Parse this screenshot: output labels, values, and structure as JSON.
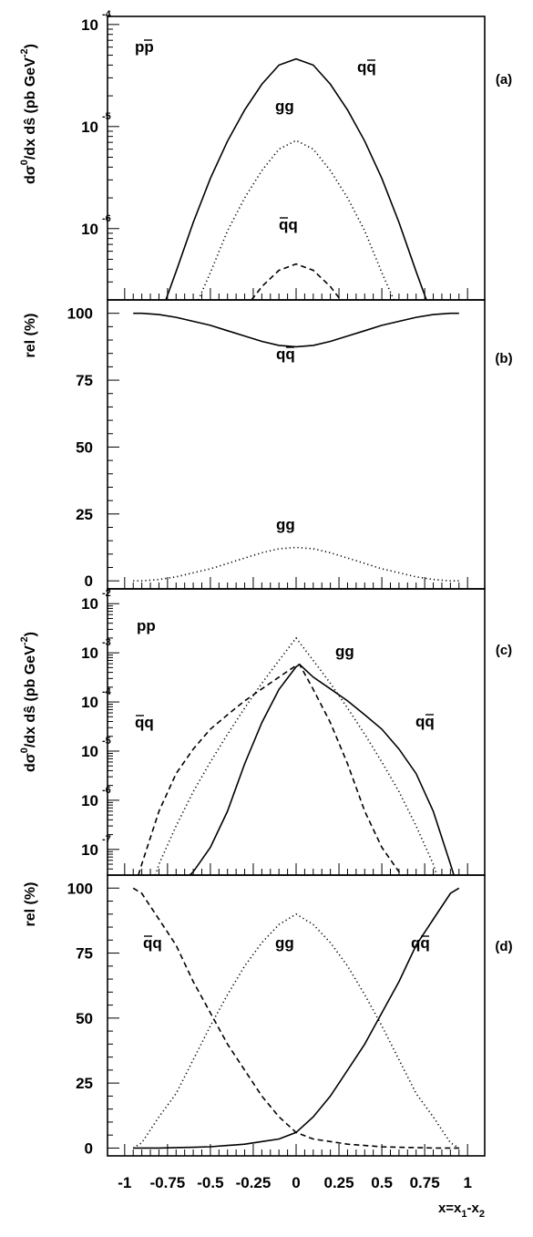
{
  "chart_data": [
    {
      "panel": "(a)",
      "type": "line",
      "scale_y": "log",
      "ylabel": "dσ⁰/dx dŝ (pb GeV⁻²)",
      "xlim": [
        -1.1,
        1.1
      ],
      "ylim": [
        2e-07,
        0.00012
      ],
      "ytick_labels": [
        "10⁻⁴",
        "10⁻⁵",
        "10⁻⁶"
      ],
      "ytick_values": [
        0.0001,
        1e-05,
        1e-06
      ],
      "annotations": [
        "pp̄",
        "qq̄",
        "gg",
        "q̄q"
      ],
      "series": [
        {
          "name": "qq̄",
          "style": "solid",
          "x": [
            -0.76,
            -0.7,
            -0.6,
            -0.5,
            -0.4,
            -0.3,
            -0.2,
            -0.1,
            0,
            0.1,
            0.2,
            0.3,
            0.4,
            0.5,
            0.6,
            0.7,
            0.76
          ],
          "y": [
            2e-07,
            3.8e-07,
            1.15e-06,
            3.1e-06,
            7.2e-06,
            1.45e-05,
            2.6e-05,
            4e-05,
            4.6e-05,
            4e-05,
            2.6e-05,
            1.45e-05,
            7.2e-06,
            3.1e-06,
            1.15e-06,
            3.8e-07,
            2e-07
          ]
        },
        {
          "name": "gg",
          "style": "dotted",
          "x": [
            -0.57,
            -0.5,
            -0.4,
            -0.3,
            -0.2,
            -0.1,
            0,
            0.1,
            0.2,
            0.3,
            0.4,
            0.5,
            0.57
          ],
          "y": [
            2e-07,
            3.7e-07,
            9.5e-07,
            2e-06,
            3.7e-06,
            6e-06,
            7.3e-06,
            6e-06,
            3.7e-06,
            2e-06,
            9.5e-07,
            3.7e-07,
            2e-07
          ]
        },
        {
          "name": "q̄q",
          "style": "dashed",
          "x": [
            -0.26,
            -0.2,
            -0.1,
            0,
            0.1,
            0.2,
            0.26
          ],
          "y": [
            2e-07,
            2.7e-07,
            3.9e-07,
            4.5e-07,
            3.9e-07,
            2.7e-07,
            2e-07
          ]
        }
      ]
    },
    {
      "panel": "(b)",
      "type": "line",
      "ylabel": "rel (%)",
      "xlim": [
        -1.1,
        1.1
      ],
      "ylim": [
        -3,
        105
      ],
      "ytick_labels": [
        "100",
        "75",
        "50",
        "25",
        "0"
      ],
      "ytick_values": [
        100,
        75,
        50,
        25,
        0
      ],
      "annotations": [
        "qq̄",
        "gg"
      ],
      "series": [
        {
          "name": "qq̄",
          "style": "solid",
          "x": [
            -0.95,
            -0.9,
            -0.8,
            -0.7,
            -0.6,
            -0.5,
            -0.4,
            -0.3,
            -0.2,
            -0.1,
            0,
            0.1,
            0.2,
            0.3,
            0.4,
            0.5,
            0.6,
            0.7,
            0.8,
            0.9,
            0.95
          ],
          "y": [
            100,
            100,
            99.5,
            98.5,
            97,
            95.5,
            93.5,
            91.5,
            89.5,
            88,
            87.5,
            88,
            89.5,
            91.5,
            93.5,
            95.5,
            97,
            98.5,
            99.5,
            100,
            100
          ]
        },
        {
          "name": "gg",
          "style": "dotted",
          "x": [
            -0.95,
            -0.9,
            -0.8,
            -0.7,
            -0.6,
            -0.5,
            -0.4,
            -0.3,
            -0.2,
            -0.1,
            0,
            0.1,
            0.2,
            0.3,
            0.4,
            0.5,
            0.6,
            0.7,
            0.8,
            0.9,
            0.95
          ],
          "y": [
            0,
            0,
            0.5,
            1.5,
            3,
            4.5,
            6.5,
            8.5,
            10.5,
            12,
            12.5,
            12,
            10.5,
            8.5,
            6.5,
            4.5,
            3,
            1.5,
            0.5,
            0,
            0
          ]
        }
      ]
    },
    {
      "panel": "(c)",
      "type": "line",
      "scale_y": "log",
      "ylabel": "dσ⁰/dx dŝ (pb GeV⁻²)",
      "xlim": [
        -1.1,
        1.1
      ],
      "ylim": [
        3e-08,
        0.02
      ],
      "ytick_labels": [
        "10⁻²",
        "10⁻³",
        "10⁻⁴",
        "10⁻⁵",
        "10⁻⁶",
        "10⁻⁷"
      ],
      "ytick_values": [
        0.01,
        0.001,
        0.0001,
        1e-05,
        1e-06,
        1e-07
      ],
      "annotations": [
        "pp",
        "gg",
        "q̄q",
        "qq̄"
      ],
      "series": [
        {
          "name": "gg",
          "style": "dotted",
          "x": [
            -0.82,
            -0.8,
            -0.7,
            -0.6,
            -0.5,
            -0.4,
            -0.3,
            -0.2,
            -0.1,
            0,
            0.1,
            0.2,
            0.3,
            0.4,
            0.5,
            0.6,
            0.7,
            0.8,
            0.82
          ],
          "y": [
            3e-08,
            5e-08,
            3e-07,
            1.5e-06,
            6e-06,
            2.2e-05,
            7.5e-05,
            0.00024,
            0.0007,
            0.002,
            0.0007,
            0.00024,
            7.5e-05,
            2.2e-05,
            6e-06,
            1.5e-06,
            3e-07,
            5e-08,
            3e-08
          ]
        },
        {
          "name": "q̄q",
          "style": "dashed",
          "x": [
            -0.92,
            -0.9,
            -0.8,
            -0.7,
            -0.6,
            -0.5,
            -0.4,
            -0.3,
            -0.2,
            -0.1,
            0,
            0.02,
            0.1,
            0.2,
            0.3,
            0.4,
            0.5,
            0.6,
            0.62
          ],
          "y": [
            3e-08,
            5e-08,
            6e-07,
            3.5e-06,
            1.1e-05,
            2.8e-05,
            5.5e-05,
            0.000105,
            0.000185,
            0.00032,
            0.00055,
            0.00058,
            0.00018,
            3.8e-05,
            5.5e-06,
            6e-07,
            1.1e-07,
            3.5e-08,
            3e-08
          ]
        },
        {
          "name": "qq̄",
          "style": "solid",
          "x": [
            -0.62,
            -0.6,
            -0.5,
            -0.4,
            -0.3,
            -0.2,
            -0.1,
            0,
            0.02,
            0.1,
            0.2,
            0.3,
            0.4,
            0.5,
            0.6,
            0.7,
            0.8,
            0.9,
            0.92
          ],
          "y": [
            3e-08,
            3.5e-08,
            1.1e-07,
            6e-07,
            5.5e-06,
            3.8e-05,
            0.00018,
            0.00052,
            0.00058,
            0.00032,
            0.000185,
            0.000105,
            5.5e-05,
            2.8e-05,
            1.1e-05,
            3.5e-06,
            6e-07,
            5e-08,
            3e-08
          ]
        }
      ]
    },
    {
      "panel": "(d)",
      "type": "line",
      "ylabel": "rel (%)",
      "xlabel": "x=x₁-x₂",
      "xlim": [
        -1.1,
        1.1
      ],
      "ylim": [
        -3,
        105
      ],
      "xtick_labels": [
        "-1",
        "-0.75",
        "-0.5",
        "-0.25",
        "0",
        "0.25",
        "0.5",
        "0.75",
        "1"
      ],
      "xtick_values": [
        -1,
        -0.75,
        -0.5,
        -0.25,
        0,
        0.25,
        0.5,
        0.75,
        1
      ],
      "ytick_labels": [
        "100",
        "75",
        "50",
        "25",
        "0"
      ],
      "ytick_values": [
        100,
        75,
        50,
        25,
        0
      ],
      "annotations": [
        "q̄q",
        "gg",
        "qq̄"
      ],
      "series": [
        {
          "name": "q̄q",
          "style": "dashed",
          "x": [
            -0.95,
            -0.9,
            -0.8,
            -0.7,
            -0.6,
            -0.5,
            -0.4,
            -0.3,
            -0.2,
            -0.1,
            0,
            0.1,
            0.2,
            0.3,
            0.4,
            0.5,
            0.6,
            0.7,
            0.8,
            0.9,
            0.95
          ],
          "y": [
            100,
            98,
            88,
            78,
            64,
            52,
            40,
            30,
            20,
            12,
            6,
            3.5,
            2.5,
            1.5,
            1,
            0.5,
            0.3,
            0.2,
            0,
            0,
            0
          ]
        },
        {
          "name": "gg",
          "style": "dotted",
          "x": [
            -0.95,
            -0.9,
            -0.8,
            -0.7,
            -0.6,
            -0.5,
            -0.4,
            -0.3,
            -0.2,
            -0.1,
            0,
            0.1,
            0.2,
            0.3,
            0.4,
            0.5,
            0.6,
            0.7,
            0.8,
            0.9,
            0.95
          ],
          "y": [
            0,
            2,
            12,
            21,
            34,
            47,
            59,
            70,
            79,
            86,
            90,
            86,
            79,
            70,
            59,
            47,
            34,
            21,
            12,
            2,
            0
          ]
        },
        {
          "name": "qq̄",
          "style": "solid",
          "x": [
            -0.95,
            -0.9,
            -0.8,
            -0.7,
            -0.6,
            -0.5,
            -0.4,
            -0.3,
            -0.2,
            -0.1,
            0,
            0.1,
            0.2,
            0.3,
            0.4,
            0.5,
            0.6,
            0.7,
            0.8,
            0.9,
            0.95
          ],
          "y": [
            0,
            0,
            0,
            0.2,
            0.3,
            0.5,
            1,
            1.5,
            2.5,
            3.5,
            6,
            12,
            20,
            30,
            40,
            52,
            64,
            78,
            88,
            98,
            100
          ]
        }
      ]
    }
  ]
}
